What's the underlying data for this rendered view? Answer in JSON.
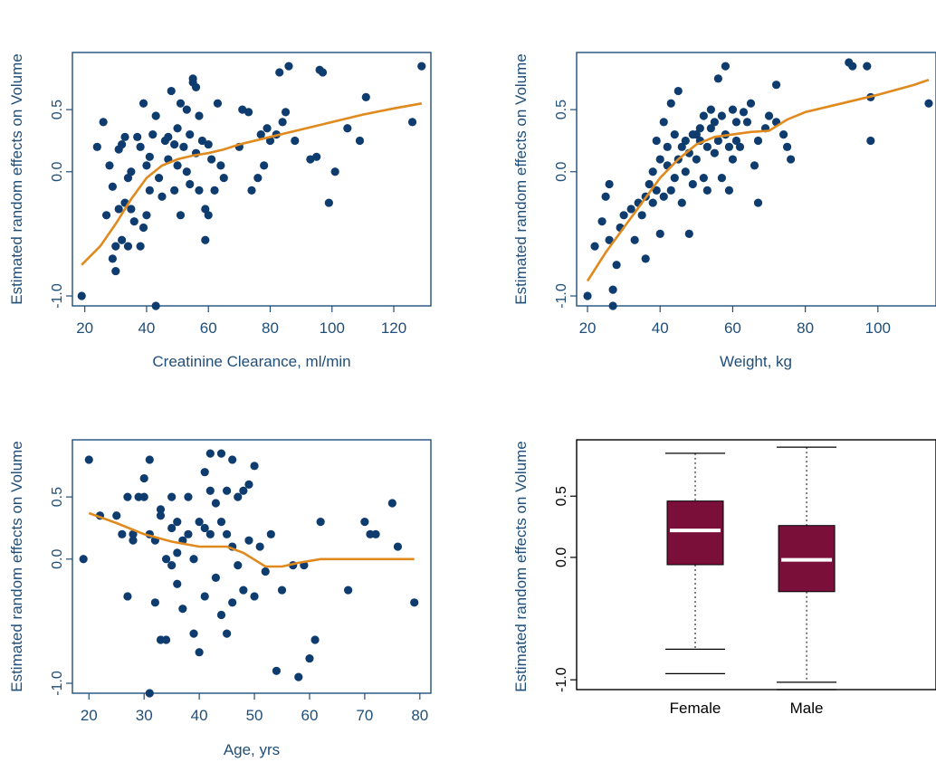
{
  "colors": {
    "axis": "#1f4e79",
    "points": "#0f3c6e",
    "smooth": "#e08a1e",
    "box_fill": "#7a0f3a",
    "median": "#ffffff",
    "whisker": "#000000"
  },
  "chart_data": [
    {
      "type": "scatter",
      "xlabel": "Creatinine Clearance, ml/min",
      "ylabel": "Estimated random effects on Volume",
      "xlim": [
        16,
        132
      ],
      "ylim": [
        -1.08,
        0.96
      ],
      "xticks": [
        20,
        40,
        60,
        80,
        100,
        120
      ],
      "yticks": [
        0.5,
        0.0,
        -1.0
      ],
      "ytick_labels": [
        "0.5",
        "0.0",
        "-1.0"
      ],
      "points": [
        [
          19,
          -1.0
        ],
        [
          24,
          0.2
        ],
        [
          26,
          0.4
        ],
        [
          27,
          -0.35
        ],
        [
          28,
          0.05
        ],
        [
          29,
          -0.12
        ],
        [
          29,
          -0.7
        ],
        [
          30,
          -0.8
        ],
        [
          30,
          -0.6
        ],
        [
          31,
          -0.3
        ],
        [
          31,
          0.18
        ],
        [
          32,
          0.22
        ],
        [
          32,
          -0.55
        ],
        [
          33,
          0.28
        ],
        [
          33,
          -0.25
        ],
        [
          34,
          -0.05
        ],
        [
          34,
          -0.6
        ],
        [
          35,
          -0.3
        ],
        [
          35,
          0.0
        ],
        [
          36,
          -0.4
        ],
        [
          37,
          0.28
        ],
        [
          38,
          -0.6
        ],
        [
          38,
          0.2
        ],
        [
          39,
          0.55
        ],
        [
          39,
          -0.45
        ],
        [
          40,
          -0.35
        ],
        [
          40,
          0.05
        ],
        [
          41,
          -0.15
        ],
        [
          41,
          0.12
        ],
        [
          42,
          0.3
        ],
        [
          43,
          0.45
        ],
        [
          43,
          -1.08
        ],
        [
          44,
          -0.05
        ],
        [
          45,
          -0.2
        ],
        [
          46,
          0.25
        ],
        [
          47,
          0.28
        ],
        [
          47,
          0.1
        ],
        [
          48,
          0.65
        ],
        [
          49,
          -0.15
        ],
        [
          49,
          0.22
        ],
        [
          50,
          0.35
        ],
        [
          50,
          0.05
        ],
        [
          51,
          -0.35
        ],
        [
          51,
          0.55
        ],
        [
          52,
          0.2
        ],
        [
          53,
          0.5
        ],
        [
          53,
          0.0
        ],
        [
          54,
          -0.1
        ],
        [
          54,
          0.3
        ],
        [
          55,
          0.75
        ],
        [
          55,
          0.72
        ],
        [
          56,
          0.15
        ],
        [
          56,
          0.68
        ],
        [
          57,
          0.45
        ],
        [
          57,
          -0.15
        ],
        [
          58,
          0.25
        ],
        [
          59,
          -0.3
        ],
        [
          59,
          -0.55
        ],
        [
          60,
          0.22
        ],
        [
          60,
          -0.35
        ],
        [
          61,
          0.1
        ],
        [
          62,
          -0.15
        ],
        [
          63,
          0.55
        ],
        [
          64,
          0.05
        ],
        [
          65,
          -0.05
        ],
        [
          70,
          0.2
        ],
        [
          71,
          0.5
        ],
        [
          73,
          0.48
        ],
        [
          74,
          -0.15
        ],
        [
          76,
          -0.05
        ],
        [
          77,
          0.3
        ],
        [
          78,
          0.05
        ],
        [
          79,
          0.35
        ],
        [
          80,
          0.25
        ],
        [
          82,
          0.3
        ],
        [
          83,
          0.8
        ],
        [
          84,
          0.4
        ],
        [
          85,
          0.48
        ],
        [
          86,
          0.85
        ],
        [
          88,
          0.25
        ],
        [
          93,
          0.1
        ],
        [
          95,
          0.12
        ],
        [
          96,
          0.82
        ],
        [
          97,
          0.8
        ],
        [
          99,
          -0.25
        ],
        [
          101,
          0.0
        ],
        [
          105,
          0.35
        ],
        [
          109,
          0.25
        ],
        [
          111,
          0.6
        ],
        [
          126,
          0.4
        ],
        [
          129,
          0.85
        ]
      ],
      "smooth": [
        [
          19,
          -0.75
        ],
        [
          25,
          -0.6
        ],
        [
          30,
          -0.42
        ],
        [
          35,
          -0.22
        ],
        [
          40,
          -0.05
        ],
        [
          45,
          0.05
        ],
        [
          50,
          0.1
        ],
        [
          55,
          0.13
        ],
        [
          60,
          0.15
        ],
        [
          65,
          0.18
        ],
        [
          70,
          0.22
        ],
        [
          80,
          0.28
        ],
        [
          90,
          0.34
        ],
        [
          100,
          0.4
        ],
        [
          110,
          0.46
        ],
        [
          120,
          0.51
        ],
        [
          129,
          0.55
        ]
      ]
    },
    {
      "type": "scatter",
      "xlabel": "Weight, kg",
      "ylabel": "Estimated random effects on Volume",
      "xlim": [
        17,
        116
      ],
      "ylim": [
        -1.08,
        0.96
      ],
      "xticks": [
        20,
        40,
        60,
        80,
        100
      ],
      "yticks": [
        0.5,
        0.0,
        -1.0
      ],
      "ytick_labels": [
        "0.5",
        "0.0",
        "-1.0"
      ],
      "points": [
        [
          20,
          -1.0
        ],
        [
          22,
          -0.6
        ],
        [
          24,
          -0.4
        ],
        [
          25,
          -0.2
        ],
        [
          26,
          -0.1
        ],
        [
          26,
          -0.55
        ],
        [
          27,
          -1.08
        ],
        [
          27,
          -0.95
        ],
        [
          28,
          -0.75
        ],
        [
          29,
          -0.45
        ],
        [
          30,
          -0.35
        ],
        [
          32,
          -0.3
        ],
        [
          33,
          -0.55
        ],
        [
          34,
          -0.25
        ],
        [
          35,
          -0.35
        ],
        [
          36,
          -0.7
        ],
        [
          36,
          -0.2
        ],
        [
          37,
          -0.1
        ],
        [
          38,
          0.0
        ],
        [
          38,
          -0.25
        ],
        [
          39,
          0.25
        ],
        [
          39,
          -0.15
        ],
        [
          40,
          0.1
        ],
        [
          40,
          -0.5
        ],
        [
          41,
          0.4
        ],
        [
          41,
          -0.2
        ],
        [
          42,
          0.2
        ],
        [
          42,
          0.05
        ],
        [
          43,
          -0.15
        ],
        [
          43,
          0.55
        ],
        [
          44,
          0.3
        ],
        [
          44,
          -0.05
        ],
        [
          45,
          0.65
        ],
        [
          45,
          0.1
        ],
        [
          46,
          -0.25
        ],
        [
          46,
          0.2
        ],
        [
          47,
          0.25
        ],
        [
          47,
          0.0
        ],
        [
          48,
          0.15
        ],
        [
          48,
          -0.5
        ],
        [
          49,
          0.3
        ],
        [
          49,
          -0.1
        ],
        [
          50,
          0.1
        ],
        [
          50,
          0.3
        ],
        [
          51,
          0.35
        ],
        [
          51,
          0.25
        ],
        [
          52,
          0.45
        ],
        [
          52,
          -0.05
        ],
        [
          53,
          0.2
        ],
        [
          53,
          -0.15
        ],
        [
          54,
          0.5
        ],
        [
          54,
          0.35
        ],
        [
          55,
          0.4
        ],
        [
          55,
          0.15
        ],
        [
          56,
          0.25
        ],
        [
          56,
          0.75
        ],
        [
          57,
          -0.05
        ],
        [
          57,
          0.45
        ],
        [
          58,
          0.3
        ],
        [
          58,
          0.85
        ],
        [
          59,
          0.2
        ],
        [
          59,
          -0.15
        ],
        [
          60,
          0.1
        ],
        [
          60,
          0.5
        ],
        [
          61,
          0.4
        ],
        [
          61,
          0.25
        ],
        [
          62,
          0.2
        ],
        [
          63,
          0.48
        ],
        [
          64,
          0.4
        ],
        [
          65,
          0.55
        ],
        [
          66,
          0.05
        ],
        [
          67,
          0.25
        ],
        [
          67,
          -0.25
        ],
        [
          69,
          0.35
        ],
        [
          70,
          0.45
        ],
        [
          72,
          0.4
        ],
        [
          72,
          0.7
        ],
        [
          74,
          0.3
        ],
        [
          75,
          0.2
        ],
        [
          76,
          0.1
        ],
        [
          92,
          0.88
        ],
        [
          93,
          0.85
        ],
        [
          97,
          0.85
        ],
        [
          98,
          0.6
        ],
        [
          98,
          0.25
        ],
        [
          114,
          0.55
        ]
      ],
      "smooth": [
        [
          20,
          -0.88
        ],
        [
          25,
          -0.65
        ],
        [
          30,
          -0.45
        ],
        [
          35,
          -0.25
        ],
        [
          40,
          -0.05
        ],
        [
          45,
          0.1
        ],
        [
          50,
          0.22
        ],
        [
          55,
          0.28
        ],
        [
          60,
          0.3
        ],
        [
          65,
          0.32
        ],
        [
          70,
          0.33
        ],
        [
          75,
          0.42
        ],
        [
          80,
          0.48
        ],
        [
          90,
          0.55
        ],
        [
          100,
          0.62
        ],
        [
          110,
          0.7
        ],
        [
          114,
          0.74
        ]
      ]
    },
    {
      "type": "scatter",
      "xlabel": "Age, yrs",
      "ylabel": "Estimated random effects on Volume",
      "xlim": [
        17,
        82
      ],
      "ylim": [
        -1.08,
        0.96
      ],
      "xticks": [
        20,
        30,
        40,
        50,
        60,
        70,
        80
      ],
      "yticks": [
        0.5,
        0.0,
        -1.0
      ],
      "ytick_labels": [
        "0.5",
        "0.0",
        "-1.0"
      ],
      "points": [
        [
          19,
          0.0
        ],
        [
          20,
          0.8
        ],
        [
          22,
          0.35
        ],
        [
          25,
          0.35
        ],
        [
          26,
          0.2
        ],
        [
          27,
          0.5
        ],
        [
          27,
          -0.3
        ],
        [
          28,
          0.15
        ],
        [
          28,
          0.2
        ],
        [
          29,
          0.5
        ],
        [
          30,
          0.65
        ],
        [
          30,
          0.5
        ],
        [
          31,
          0.8
        ],
        [
          31,
          -1.08
        ],
        [
          31,
          0.2
        ],
        [
          32,
          0.15
        ],
        [
          32,
          -0.35
        ],
        [
          33,
          0.4
        ],
        [
          33,
          0.35
        ],
        [
          33,
          -0.65
        ],
        [
          34,
          0.0
        ],
        [
          34,
          -0.65
        ],
        [
          35,
          0.5
        ],
        [
          35,
          0.25
        ],
        [
          35,
          -0.05
        ],
        [
          36,
          0.3
        ],
        [
          36,
          0.05
        ],
        [
          36,
          -0.2
        ],
        [
          37,
          0.15
        ],
        [
          37,
          -0.4
        ],
        [
          38,
          0.5
        ],
        [
          38,
          0.2
        ],
        [
          39,
          0.0
        ],
        [
          39,
          -0.6
        ],
        [
          40,
          0.3
        ],
        [
          40,
          -0.75
        ],
        [
          41,
          0.7
        ],
        [
          41,
          0.25
        ],
        [
          41,
          -0.3
        ],
        [
          42,
          0.85
        ],
        [
          42,
          0.55
        ],
        [
          42,
          0.2
        ],
        [
          43,
          0.45
        ],
        [
          43,
          -0.15
        ],
        [
          44,
          0.85
        ],
        [
          44,
          0.3
        ],
        [
          44,
          -0.45
        ],
        [
          45,
          0.55
        ],
        [
          45,
          0.2
        ],
        [
          45,
          -0.6
        ],
        [
          46,
          0.8
        ],
        [
          46,
          0.1
        ],
        [
          46,
          -0.35
        ],
        [
          47,
          0.5
        ],
        [
          47,
          -0.05
        ],
        [
          48,
          0.55
        ],
        [
          48,
          -0.25
        ],
        [
          49,
          0.6
        ],
        [
          49,
          0.15
        ],
        [
          50,
          0.75
        ],
        [
          50,
          -0.3
        ],
        [
          51,
          0.1
        ],
        [
          52,
          -0.1
        ],
        [
          53,
          0.2
        ],
        [
          54,
          -0.9
        ],
        [
          55,
          -0.25
        ],
        [
          57,
          -0.05
        ],
        [
          58,
          -0.95
        ],
        [
          59,
          -0.05
        ],
        [
          60,
          -0.8
        ],
        [
          61,
          -0.65
        ],
        [
          62,
          0.3
        ],
        [
          67,
          -0.25
        ],
        [
          70,
          0.3
        ],
        [
          71,
          0.2
        ],
        [
          72,
          0.2
        ],
        [
          75,
          0.45
        ],
        [
          76,
          0.1
        ],
        [
          79,
          -0.35
        ]
      ],
      "smooth": [
        [
          20,
          0.37
        ],
        [
          25,
          0.29
        ],
        [
          30,
          0.2
        ],
        [
          35,
          0.14
        ],
        [
          40,
          0.1
        ],
        [
          45,
          0.1
        ],
        [
          48,
          0.05
        ],
        [
          52,
          -0.06
        ],
        [
          55,
          -0.06
        ],
        [
          58,
          -0.03
        ],
        [
          62,
          0.0
        ],
        [
          70,
          0.0
        ],
        [
          79,
          0.0
        ]
      ]
    },
    {
      "type": "box",
      "ylabel": "Estimated random effects on Volume",
      "ylim": [
        -1.08,
        0.96
      ],
      "yticks": [
        0.5,
        0.0,
        -1.0
      ],
      "ytick_labels": [
        "0.5",
        "0.0",
        "-1.0"
      ],
      "categories": [
        "Female",
        "Male"
      ],
      "boxes": [
        {
          "whisker_high": 0.85,
          "q3": 0.46,
          "median": 0.22,
          "q1": -0.06,
          "whisker_low": -0.75,
          "outlier_low": -0.95
        },
        {
          "whisker_high": 0.9,
          "q3": 0.26,
          "median": -0.02,
          "q1": -0.28,
          "whisker_low": -1.02,
          "outlier_low": -1.08
        }
      ]
    }
  ]
}
